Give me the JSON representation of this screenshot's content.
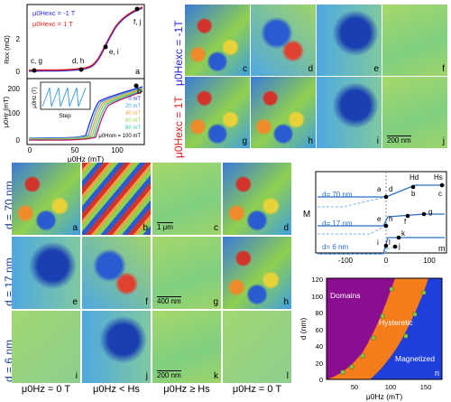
{
  "panel_top_left": {
    "legend": [
      "μ0Hexc = -1 T",
      "μ0Hexc = 1 T"
    ],
    "legend_colors": [
      "#2a2ad8",
      "#e02020"
    ],
    "ylabel_top": "Rxx (mΩ)",
    "ylabel_bottom": "μ0Hr (mT)",
    "xlabel": "μ0Hz (mT)",
    "top_yticks": [
      "2",
      "0"
    ],
    "bottom_yticks": [
      "200",
      "100",
      "0"
    ],
    "xticks": [
      "0",
      "50",
      "100"
    ],
    "point_labels_top": [
      "c, g",
      "d, h",
      "e, i",
      "f, j",
      "a"
    ],
    "point_labels_bottom": [
      "b"
    ],
    "inset": {
      "ylabel": "μ0Hz (T)",
      "xlabel": "Step",
      "yticks": [
        "1",
        "0"
      ],
      "xticks": [
        "0",
        "2",
        "4",
        "6"
      ]
    },
    "hr_legend": [
      "0 mT",
      "20 mT",
      "40 mT",
      "60 mT",
      "80 mT",
      "μ0Hnm = 100 mT"
    ],
    "hr_colors": [
      "#2a2ad8",
      "#3f9fe0",
      "#f0a040",
      "#8fd04f",
      "#40c0b0",
      "#c02060"
    ]
  },
  "panel_top_right": {
    "row_labels": [
      "μ0Hexc = -1T",
      "μ0Hexc = 1T"
    ],
    "row_colors": [
      "#2a2ad8",
      "#e02020"
    ],
    "tiles_row1": [
      "c",
      "d",
      "e",
      "f"
    ],
    "tiles_row2": [
      "g",
      "h",
      "i",
      "j"
    ],
    "scale": "200 nm"
  },
  "panel_grid": {
    "row_labels": [
      "d = 70 nm",
      "d = 17 nm",
      "d = 6 nm"
    ],
    "tiles": [
      [
        "a",
        "b",
        "c",
        "d"
      ],
      [
        "e",
        "f",
        "g",
        "h"
      ],
      [
        "i",
        "j",
        "k",
        "l"
      ]
    ],
    "scale_labels": {
      "row1": "1 μm",
      "row2": "400 nm",
      "row3": "200 nm"
    },
    "col_labels": [
      "μ0Hz = 0 T",
      "μ0Hz < Hs",
      "μ0Hz ≥ Hs",
      "μ0Hz = 0 T"
    ]
  },
  "panel_m": {
    "ylabel": "M",
    "thickness_labels": [
      "d= 70 nm",
      "d= 17 nm",
      "d= 6 nm"
    ],
    "xticks": [
      "-100",
      "0",
      "100"
    ],
    "point_labels": [
      "a",
      "d",
      "b",
      "c",
      "e",
      "h",
      "f",
      "g",
      "i",
      "l",
      "k",
      "j"
    ],
    "field_labels": [
      "Hd",
      "Hs"
    ],
    "tag": "m"
  },
  "panel_n": {
    "ylabel": "d (nm)",
    "xlabel": "μ0Hz (mT)",
    "yticks": [
      "120",
      "100",
      "80",
      "60",
      "40",
      "20",
      "0"
    ],
    "xticks": [
      "50",
      "100",
      "150"
    ],
    "regions": [
      "Domains",
      "Hysteretic",
      "Magnetized"
    ],
    "region_colors": [
      "#8a0e8f",
      "#f27d1a",
      "#1f3fdc"
    ],
    "tag": "n"
  }
}
